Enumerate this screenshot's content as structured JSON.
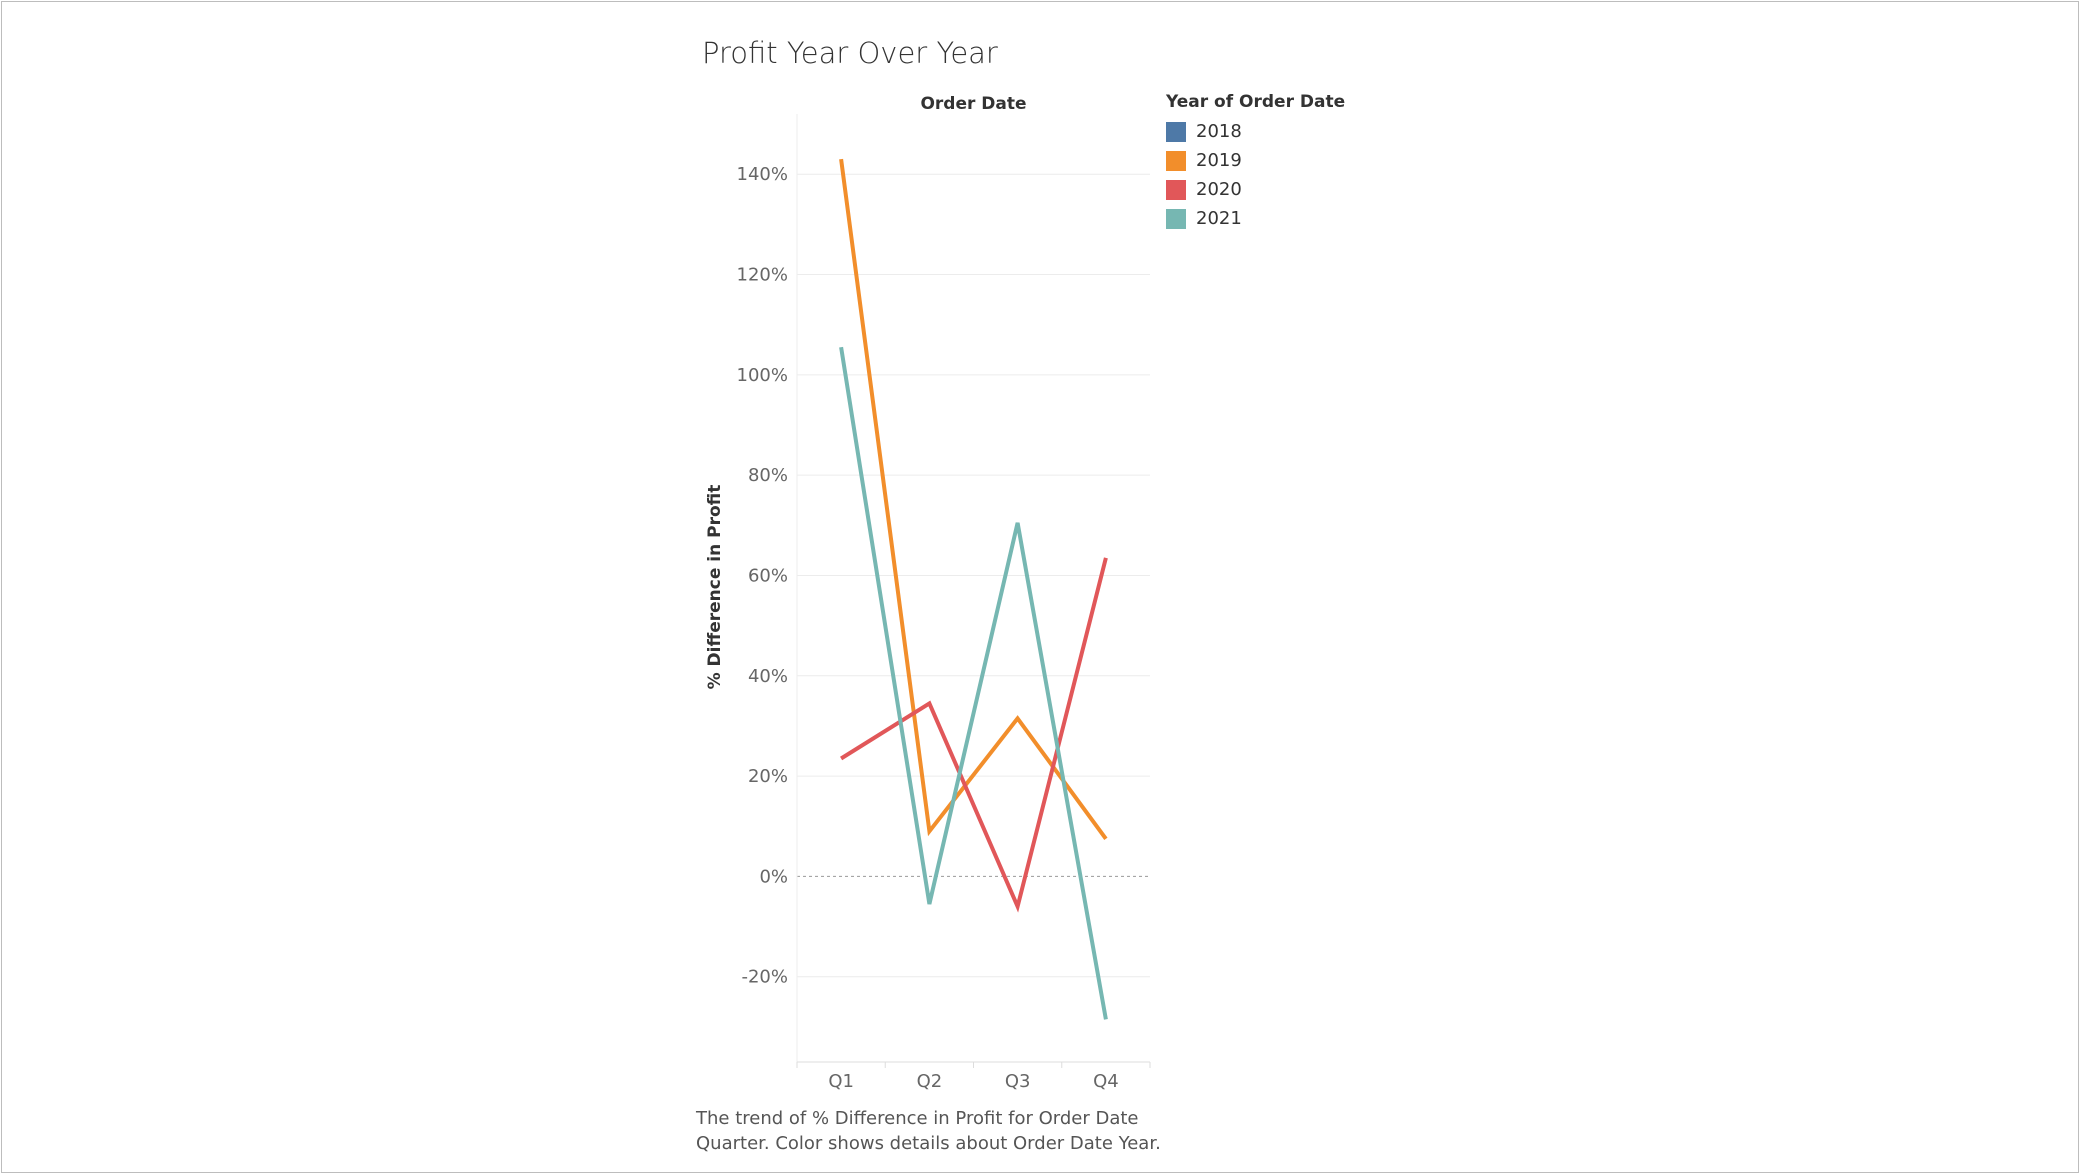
{
  "chart_data": {
    "type": "line",
    "title": "Profit Year Over Year",
    "column_header": "Order Date",
    "ylabel": "% Difference in Profit",
    "categories": [
      "Q1",
      "Q2",
      "Q3",
      "Q4"
    ],
    "y_ticks": [
      "140%",
      "120%",
      "100%",
      "80%",
      "60%",
      "40%",
      "20%",
      "0%",
      "-20%"
    ],
    "y_tick_values": [
      140,
      120,
      100,
      80,
      60,
      40,
      20,
      0,
      -20
    ],
    "ylim": [
      -37,
      152
    ],
    "grid": true,
    "zero_line": "dashed",
    "legend": {
      "title": "Year of Order Date",
      "position": "right",
      "entries": [
        {
          "name": "2018",
          "color": "#4e79a7"
        },
        {
          "name": "2019",
          "color": "#f28e2b"
        },
        {
          "name": "2020",
          "color": "#e15759"
        },
        {
          "name": "2021",
          "color": "#76b7b2"
        }
      ]
    },
    "series": [
      {
        "name": "2019",
        "color": "#f28e2b",
        "values": [
          143,
          9,
          31.5,
          7.5
        ]
      },
      {
        "name": "2020",
        "color": "#e15759",
        "values": [
          23.5,
          34.5,
          -6,
          63.5
        ]
      },
      {
        "name": "2021",
        "color": "#76b7b2",
        "values": [
          105.5,
          -5.5,
          70.5,
          -28.5
        ]
      }
    ],
    "caption": "The trend of % Difference in Profit for Order Date Quarter.  Color shows details about Order Date Year."
  }
}
